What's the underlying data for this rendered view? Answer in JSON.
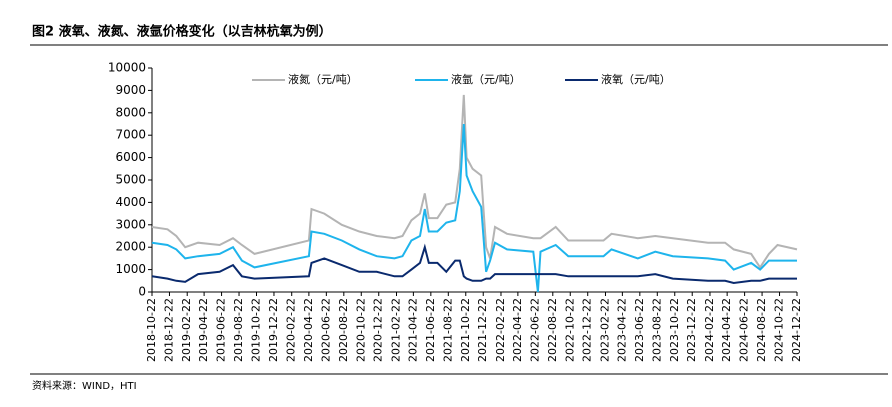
{
  "header": {
    "title": "图2  液氧、液氮、液氩价格变化（以吉林杭氧为例）"
  },
  "source": "资料来源：WIND，HTI",
  "chart_data": {
    "type": "line",
    "x": [
      "2018-10-22",
      "2018-12-15",
      "2019-01-15",
      "2019-02-15",
      "2019-04-01",
      "2019-06-15",
      "2019-08-01",
      "2019-09-01",
      "2019-10-15",
      "2020-04-22",
      "2020-05-01",
      "2020-06-15",
      "2020-08-15",
      "2020-10-15",
      "2020-12-15",
      "2021-02-15",
      "2021-03-15",
      "2021-04-15",
      "2021-05-15",
      "2021-06-01",
      "2021-06-15",
      "2021-07-15",
      "2021-08-15",
      "2021-09-15",
      "2021-10-01",
      "2021-10-15",
      "2021-10-25",
      "2021-11-15",
      "2021-12-15",
      "2022-01-01",
      "2022-01-15",
      "2022-02-01",
      "2022-03-15",
      "2022-06-15",
      "2022-07-01",
      "2022-07-10",
      "2022-09-01",
      "2022-10-15",
      "2023-02-15",
      "2023-03-15",
      "2023-06-15",
      "2023-08-15",
      "2023-10-15",
      "2024-02-15",
      "2024-04-15",
      "2024-05-15",
      "2024-07-15",
      "2024-08-15",
      "2024-09-15",
      "2024-10-15",
      "2024-12-22"
    ],
    "series": [
      {
        "name": "液氮（元/吨）",
        "color": "#b4b4b4",
        "values": [
          2900,
          2800,
          2500,
          2000,
          2200,
          2100,
          2400,
          2100,
          1700,
          2300,
          3700,
          3500,
          3000,
          2700,
          2500,
          2400,
          2500,
          3200,
          3500,
          4400,
          3300,
          3300,
          3900,
          4000,
          5500,
          8800,
          6000,
          5500,
          5200,
          2000,
          1500,
          2900,
          2600,
          2400,
          2400,
          2400,
          2900,
          2300,
          2300,
          2600,
          2400,
          2500,
          2400,
          2200,
          2200,
          1900,
          1700,
          1100,
          1700,
          2100,
          1900
        ]
      },
      {
        "name": "液氩（元/吨）",
        "color": "#1eb4ec",
        "values": [
          2200,
          2100,
          1900,
          1500,
          1600,
          1700,
          2000,
          1400,
          1100,
          1600,
          2700,
          2600,
          2300,
          1900,
          1600,
          1500,
          1600,
          2300,
          2500,
          3700,
          2700,
          2700,
          3100,
          3200,
          4500,
          7500,
          5200,
          4500,
          3800,
          900,
          1400,
          2200,
          1900,
          1800,
          0,
          1800,
          2100,
          1600,
          1600,
          1900,
          1500,
          1800,
          1600,
          1500,
          1400,
          1000,
          1300,
          1000,
          1400,
          1400,
          1400
        ]
      },
      {
        "name": "液氧（元/吨）",
        "color": "#0a2a6e",
        "values": [
          700,
          600,
          500,
          450,
          800,
          900,
          1200,
          700,
          600,
          700,
          1300,
          1500,
          1200,
          900,
          900,
          700,
          700,
          1000,
          1300,
          2000,
          1300,
          1300,
          900,
          1400,
          1400,
          700,
          600,
          500,
          500,
          600,
          600,
          800,
          800,
          800,
          800,
          800,
          800,
          700,
          700,
          700,
          700,
          800,
          600,
          500,
          500,
          400,
          500,
          500,
          600,
          600,
          600
        ]
      }
    ],
    "xlim": [
      "2018-10-22",
      "2024-12-22"
    ],
    "xticks": [
      "2018-10-22",
      "2018-12-22",
      "2019-02-22",
      "2019-04-22",
      "2019-06-22",
      "2019-08-22",
      "2019-10-22",
      "2019-12-22",
      "2020-02-22",
      "2020-04-22",
      "2020-06-22",
      "2020-08-22",
      "2020-10-22",
      "2020-12-22",
      "2021-02-22",
      "2021-04-22",
      "2021-06-22",
      "2021-08-22",
      "2021-10-22",
      "2021-12-22",
      "2022-02-22",
      "2022-04-22",
      "2022-06-22",
      "2022-08-22",
      "2022-10-22",
      "2022-12-22",
      "2023-02-22",
      "2023-04-22",
      "2023-06-22",
      "2023-08-22",
      "2023-10-22",
      "2023-12-22",
      "2024-02-22",
      "2024-04-22",
      "2024-06-22",
      "2024-08-22",
      "2024-10-22",
      "2024-12-22"
    ],
    "ylim": [
      0,
      10000
    ],
    "yticks": [
      0,
      1000,
      2000,
      3000,
      4000,
      5000,
      6000,
      7000,
      8000,
      9000,
      10000
    ]
  }
}
